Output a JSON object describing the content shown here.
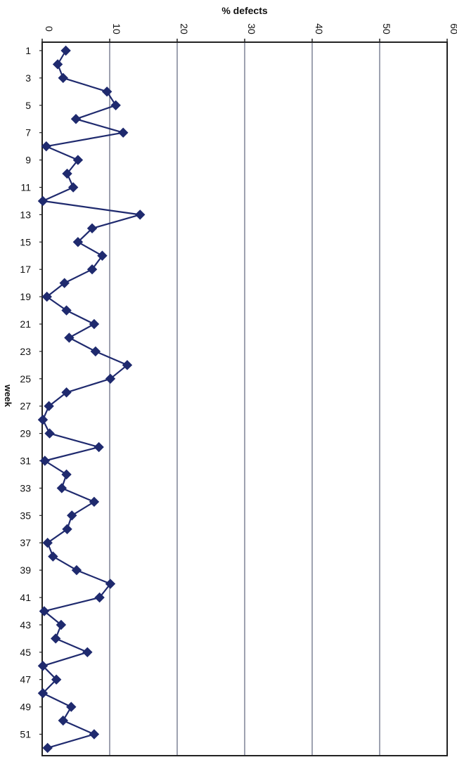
{
  "chart_data": {
    "type": "line",
    "title": "",
    "xlabel": "% defects",
    "ylabel": "week",
    "x_axis": {
      "min": 0,
      "max": 60,
      "ticks": [
        0,
        10,
        20,
        30,
        40,
        50,
        60
      ],
      "position": "top",
      "gridlines": true
    },
    "y_axis": {
      "min": 1,
      "max": 52,
      "ticks": [
        1,
        3,
        5,
        7,
        9,
        11,
        13,
        15,
        17,
        19,
        21,
        23,
        25,
        27,
        29,
        31,
        33,
        35,
        37,
        39,
        41,
        43,
        45,
        47,
        49,
        51
      ]
    },
    "series": [
      {
        "color": "#1f2a6e",
        "marker": "diamond",
        "weeks": [
          1,
          2,
          3,
          4,
          5,
          6,
          7,
          8,
          9,
          10,
          11,
          12,
          13,
          14,
          15,
          16,
          17,
          18,
          19,
          20,
          21,
          22,
          23,
          24,
          25,
          26,
          27,
          28,
          29,
          30,
          31,
          32,
          33,
          34,
          35,
          36,
          37,
          38,
          39,
          40,
          41,
          42,
          43,
          44,
          45,
          46,
          47,
          48,
          49,
          50,
          51,
          52
        ],
        "values": [
          3.5,
          2.3,
          3.1,
          9.6,
          10.9,
          5.0,
          12.0,
          0.6,
          5.3,
          3.7,
          4.6,
          0.1,
          14.5,
          7.4,
          5.3,
          8.9,
          7.4,
          3.3,
          0.7,
          3.6,
          7.7,
          4.0,
          7.9,
          12.6,
          10.1,
          3.6,
          1.0,
          0.1,
          1.1,
          8.4,
          0.4,
          3.6,
          2.9,
          7.7,
          4.4,
          3.7,
          0.8,
          1.6,
          5.1,
          10.1,
          8.5,
          0.3,
          2.8,
          2.0,
          6.7,
          0.1,
          2.1,
          0.1,
          4.3,
          3.1,
          7.7,
          0.8
        ]
      }
    ]
  }
}
